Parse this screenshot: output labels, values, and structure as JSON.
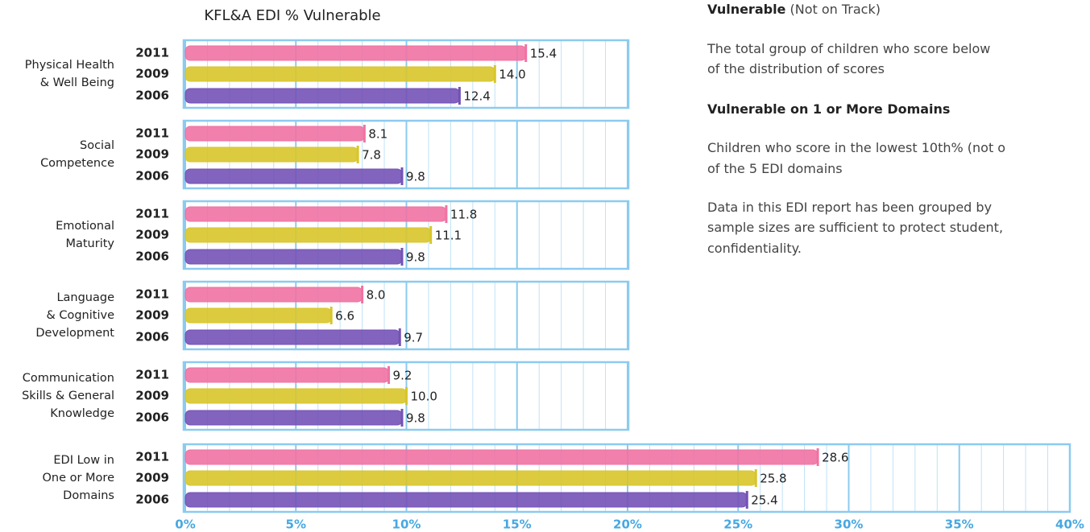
{
  "chart_data": {
    "type": "bar",
    "orientation": "horizontal",
    "title": "KFL&A EDI % Vulnerable",
    "categories": [
      [
        "Physical Health",
        "& Well Being"
      ],
      [
        "Social",
        "Competence"
      ],
      [
        "Emotional",
        "Maturity"
      ],
      [
        "Language",
        "& Cognitive",
        "Development"
      ],
      [
        "Communication",
        "Skills & General",
        "Knowledge"
      ],
      [
        "EDI Low in",
        "One or More",
        "Domains"
      ]
    ],
    "series": [
      {
        "name": "2011",
        "color": "#ef72a3",
        "label_color": "#d24f82",
        "values": [
          15.4,
          8.1,
          11.8,
          8.0,
          9.2,
          28.6
        ],
        "value_labels": [
          "15.4",
          "8.1",
          "11.8",
          "8.0",
          "9.2",
          "28.6"
        ]
      },
      {
        "name": "2009",
        "color": "#d8c52a",
        "label_color": "#9c8a25",
        "values": [
          14.0,
          7.8,
          11.1,
          6.6,
          10.0,
          25.8
        ],
        "value_labels": [
          "14.0",
          "7.8",
          "11.1",
          "6.6",
          "10.0",
          "25.8"
        ]
      },
      {
        "name": "2006",
        "color": "#7452b6",
        "label_color": "#6a4aa8",
        "values": [
          12.4,
          9.8,
          9.8,
          9.7,
          9.8,
          25.4
        ],
        "value_labels": [
          "12.4",
          "9.8",
          "9.8",
          "9.7",
          "9.8",
          "25.4"
        ]
      }
    ],
    "xlim": [
      0,
      40
    ],
    "xticks": [
      {
        "value": 0,
        "label": "0%"
      },
      {
        "value": 5,
        "label": "5%"
      },
      {
        "value": 10,
        "label": "10%"
      },
      {
        "value": 15,
        "label": "15%"
      },
      {
        "value": 20,
        "label": "20%"
      },
      {
        "value": 25,
        "label": "25%"
      },
      {
        "value": 30,
        "label": "30%"
      },
      {
        "value": 35,
        "label": "35%"
      },
      {
        "value": 40,
        "label": "40%"
      }
    ],
    "minor_xticks": [
      1,
      2,
      3,
      4,
      6,
      7,
      8,
      9,
      11,
      12,
      13,
      14,
      16,
      17,
      18,
      19,
      21,
      22,
      23,
      24,
      26,
      27,
      28,
      29,
      31,
      32,
      33,
      34,
      36,
      37,
      38,
      39
    ],
    "grid": true
  },
  "sidebar": [
    {
      "bold": "Vulnerable",
      "text": " (Not on Track)"
    },
    {
      "text": "The total group of children who score below"
    },
    {
      "text": "of the distribution of scores"
    },
    {
      "bold": "Vulnerable on 1 or More Domains"
    },
    {
      "text": "Children who score in the lowest 10th% (not o"
    },
    {
      "text": "of the 5 EDI domains"
    },
    {
      "text": "Data in this EDI report has been grouped by"
    },
    {
      "text": "sample sizes are sufficient to protect student,"
    },
    {
      "text": "confidentiality."
    }
  ]
}
